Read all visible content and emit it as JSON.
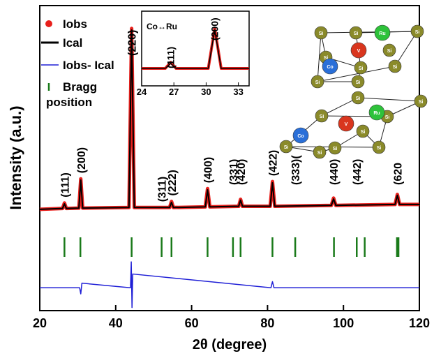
{
  "chart_data": {
    "type": "line",
    "x_label": "2θ (degree)",
    "y_label": "Intensity (a.u.)",
    "xlim": [
      20,
      120
    ],
    "xticks": [
      20,
      40,
      60,
      80,
      100,
      120
    ],
    "ylim": [
      0,
      100
    ],
    "series": [
      {
        "name": "Iobs",
        "color": "#e8201c",
        "x": [
          20,
          26,
          26.5,
          27,
          30.3,
          30.8,
          31.3,
          43.5,
          44.2,
          44.9,
          54.2,
          54.7,
          55.2,
          63.6,
          64.2,
          64.8,
          72.4,
          72.9,
          73.4,
          80.7,
          81.3,
          81.9,
          96.8,
          97.4,
          98.0,
          113.6,
          114.2,
          114.8,
          120
        ],
        "values": [
          33.2,
          33.5,
          35.3,
          33.5,
          33.6,
          43.2,
          33.6,
          33.8,
          92.5,
          33.8,
          33.8,
          35.8,
          33.8,
          34,
          40,
          34,
          34.2,
          36.5,
          34.2,
          34.2,
          42.3,
          34.2,
          34.5,
          36.9,
          34.5,
          34.8,
          38.1,
          34.8,
          34.8
        ]
      },
      {
        "name": "Ical",
        "color": "#000000",
        "x": [
          20,
          26,
          26.5,
          27,
          30.3,
          30.8,
          31.3,
          43.5,
          44.2,
          44.9,
          54.2,
          54.7,
          55.2,
          63.6,
          64.2,
          64.8,
          72.4,
          72.9,
          73.4,
          80.7,
          81.3,
          81.9,
          96.8,
          97.4,
          98.0,
          113.6,
          114.2,
          114.8,
          120
        ],
        "values": [
          33.2,
          33.5,
          35,
          33.5,
          33.6,
          42.8,
          33.6,
          33.8,
          92,
          33.8,
          33.8,
          35.5,
          33.8,
          34,
          39.6,
          34,
          34.2,
          36.2,
          34.2,
          34.2,
          41.9,
          34.2,
          34.5,
          36.6,
          34.5,
          34.8,
          37.8,
          34.8,
          34.8
        ]
      },
      {
        "name": "Iobs- Ical",
        "color": "#1f1fd6",
        "x": [
          20,
          30.5,
          30.8,
          31.1,
          43.9,
          44.1,
          44.3,
          44.5,
          80.9,
          81.3,
          81.7,
          120
        ],
        "values": [
          7.5,
          7.5,
          5.5,
          9,
          7.5,
          16,
          1,
          12,
          7.5,
          9.5,
          7.5,
          7.5
        ]
      }
    ],
    "bragg": {
      "name": "Bragg position",
      "color": "#1a7a1a",
      "x": [
        26.5,
        30.7,
        44.2,
        52.1,
        54.7,
        64.2,
        70.9,
        72.9,
        81.3,
        87.3,
        97.5,
        103.5,
        105.6,
        114.1,
        114.5
      ]
    },
    "peak_labels": [
      {
        "label": "(111)",
        "x": 26.5
      },
      {
        "label": "(200)",
        "x": 30.8
      },
      {
        "label": "(220)",
        "x": 44.2
      },
      {
        "label": "(311)",
        "x": 52.1
      },
      {
        "label": "(222)",
        "x": 54.7
      },
      {
        "label": "(400)",
        "x": 64.2
      },
      {
        "label": "(331)",
        "x": 70.9
      },
      {
        "label": "(420)",
        "x": 72.9
      },
      {
        "label": "(422)",
        "x": 81.3
      },
      {
        "label": "(333)(",
        "x": 87.3
      },
      {
        "label": "(440)",
        "x": 97.4
      },
      {
        "label": "(442)",
        "x": 103.5
      },
      {
        "label": "(620",
        "x": 114.2
      }
    ],
    "inset": {
      "title": "Co↔Ru",
      "xlim": [
        24,
        34
      ],
      "xticks": [
        24,
        27,
        30,
        33
      ],
      "ylim": [
        0,
        100
      ],
      "x": [
        24,
        26.2,
        26.7,
        27.2,
        30.2,
        30.8,
        31.4,
        34
      ],
      "series": [
        {
          "name": "Iobs",
          "color": "#e8201c",
          "values": [
            10,
            10,
            21,
            10,
            10,
            82,
            10,
            10
          ]
        },
        {
          "name": "Ical",
          "color": "#000000",
          "values": [
            10,
            10,
            19,
            10,
            10,
            79,
            10,
            10
          ]
        }
      ],
      "peak_labels": [
        {
          "label": "(111)",
          "x": 26.7
        },
        {
          "label": "(200)",
          "x": 30.8
        }
      ]
    },
    "structures": [
      {
        "atoms": [
          "Si",
          "Si",
          "Si",
          "Si",
          "Si",
          "Si",
          "Si",
          "Si",
          "Si",
          "Ru",
          "V",
          "Co"
        ]
      },
      {
        "atoms": [
          "Si",
          "Si",
          "Si",
          "Si",
          "Si",
          "Si",
          "Si",
          "Si",
          "Si",
          "V",
          "Co",
          "Ru"
        ]
      }
    ]
  }
}
